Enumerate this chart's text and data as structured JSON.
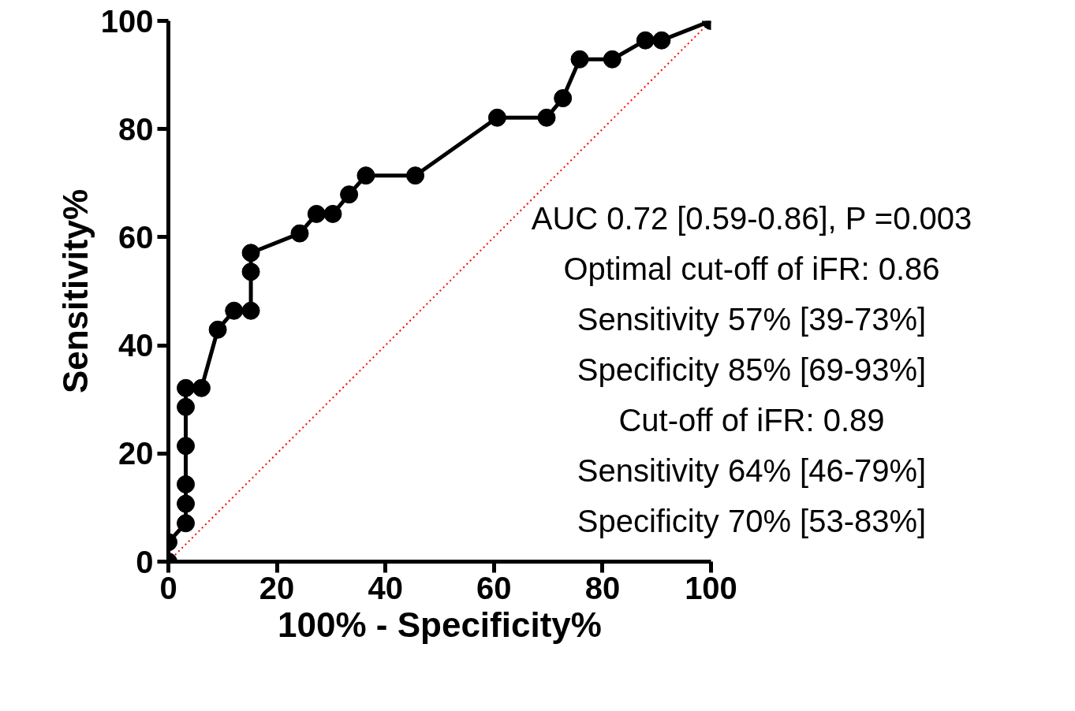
{
  "chart_data": {
    "type": "line",
    "xlabel": "100% - Specificity%",
    "ylabel": "Sensitivity%",
    "xlim": [
      0,
      100
    ],
    "ylim": [
      0,
      100
    ],
    "xticks": [
      0,
      20,
      40,
      60,
      80,
      100
    ],
    "yticks": [
      0,
      20,
      40,
      60,
      80,
      100
    ],
    "grid": false,
    "series": [
      {
        "color": "#000000",
        "marker": "circle",
        "line_style": "solid",
        "x": [
          0,
          0,
          3.2,
          3.2,
          3.2,
          3.2,
          3.2,
          3.2,
          6.1,
          9.1,
          12.1,
          15.2,
          15.2,
          15.2,
          24.2,
          27.3,
          30.3,
          33.3,
          36.4,
          45.5,
          60.6,
          69.7,
          72.7,
          75.8,
          81.8,
          87.9,
          90.9,
          100
        ],
        "values": [
          0,
          3.6,
          7.1,
          10.7,
          14.3,
          21.4,
          28.6,
          32.1,
          32.1,
          42.9,
          46.4,
          46.4,
          53.6,
          57.1,
          60.7,
          64.3,
          64.3,
          67.9,
          71.4,
          71.4,
          82.1,
          82.1,
          85.7,
          92.9,
          92.9,
          96.4,
          96.4,
          100
        ]
      },
      {
        "color": "#ff0000",
        "marker": "none",
        "line_style": "dotted",
        "x": [
          0,
          100
        ],
        "values": [
          0,
          100
        ]
      }
    ],
    "annotations": [
      "AUC 0.72 [0.59-0.86], P =0.003",
      "Optimal cut-off of iFR: 0.86",
      "Sensitivity 57% [39-73%]",
      "Specificity 85% [69-93%]",
      "Cut-off of iFR: 0.89",
      "Sensitivity 64% [46-79%]",
      "Specificity 70% [53-83%]"
    ]
  }
}
